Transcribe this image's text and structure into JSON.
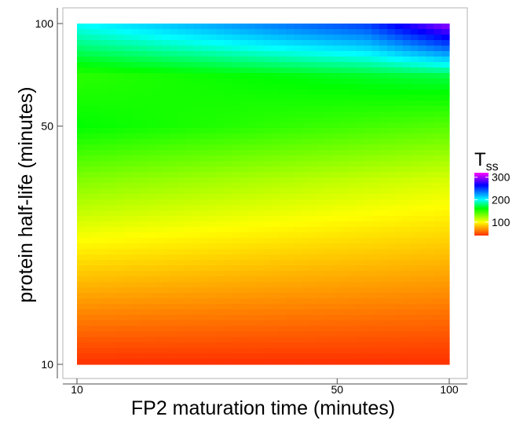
{
  "chart_data": {
    "type": "heatmap",
    "title": "",
    "xlabel": "FP2 maturation time (minutes)",
    "ylabel": "protein half-life (minutes)",
    "x_scale": "log",
    "y_scale": "log",
    "xlim": [
      10,
      100
    ],
    "ylim": [
      10,
      100
    ],
    "x_ticks": [
      {
        "value": 10,
        "label": "10"
      },
      {
        "value": 50,
        "label": "50"
      },
      {
        "value": 100,
        "label": "100"
      }
    ],
    "y_ticks": [
      {
        "value": 10,
        "label": "10"
      },
      {
        "value": 50,
        "label": "50"
      },
      {
        "value": 100,
        "label": "100"
      }
    ],
    "legend": {
      "title": "T",
      "title_subscript": "ss",
      "position": "right",
      "range": [
        40,
        320
      ],
      "ticks": [
        {
          "value": 100,
          "label": "100"
        },
        {
          "value": 200,
          "label": "200"
        },
        {
          "value": 300,
          "label": "300"
        }
      ]
    },
    "grid": false,
    "surface": {
      "columns": [
        "x",
        "y",
        "Tss"
      ],
      "values": [
        [
          10,
          10,
          40
        ],
        [
          100,
          10,
          40
        ],
        [
          10,
          35,
          130
        ],
        [
          100,
          35,
          110
        ],
        [
          10,
          50,
          160
        ],
        [
          100,
          50,
          140
        ],
        [
          10,
          70,
          150
        ],
        [
          100,
          70,
          170
        ],
        [
          10,
          100,
          200
        ],
        [
          60,
          100,
          250
        ],
        [
          100,
          100,
          300
        ]
      ]
    }
  }
}
